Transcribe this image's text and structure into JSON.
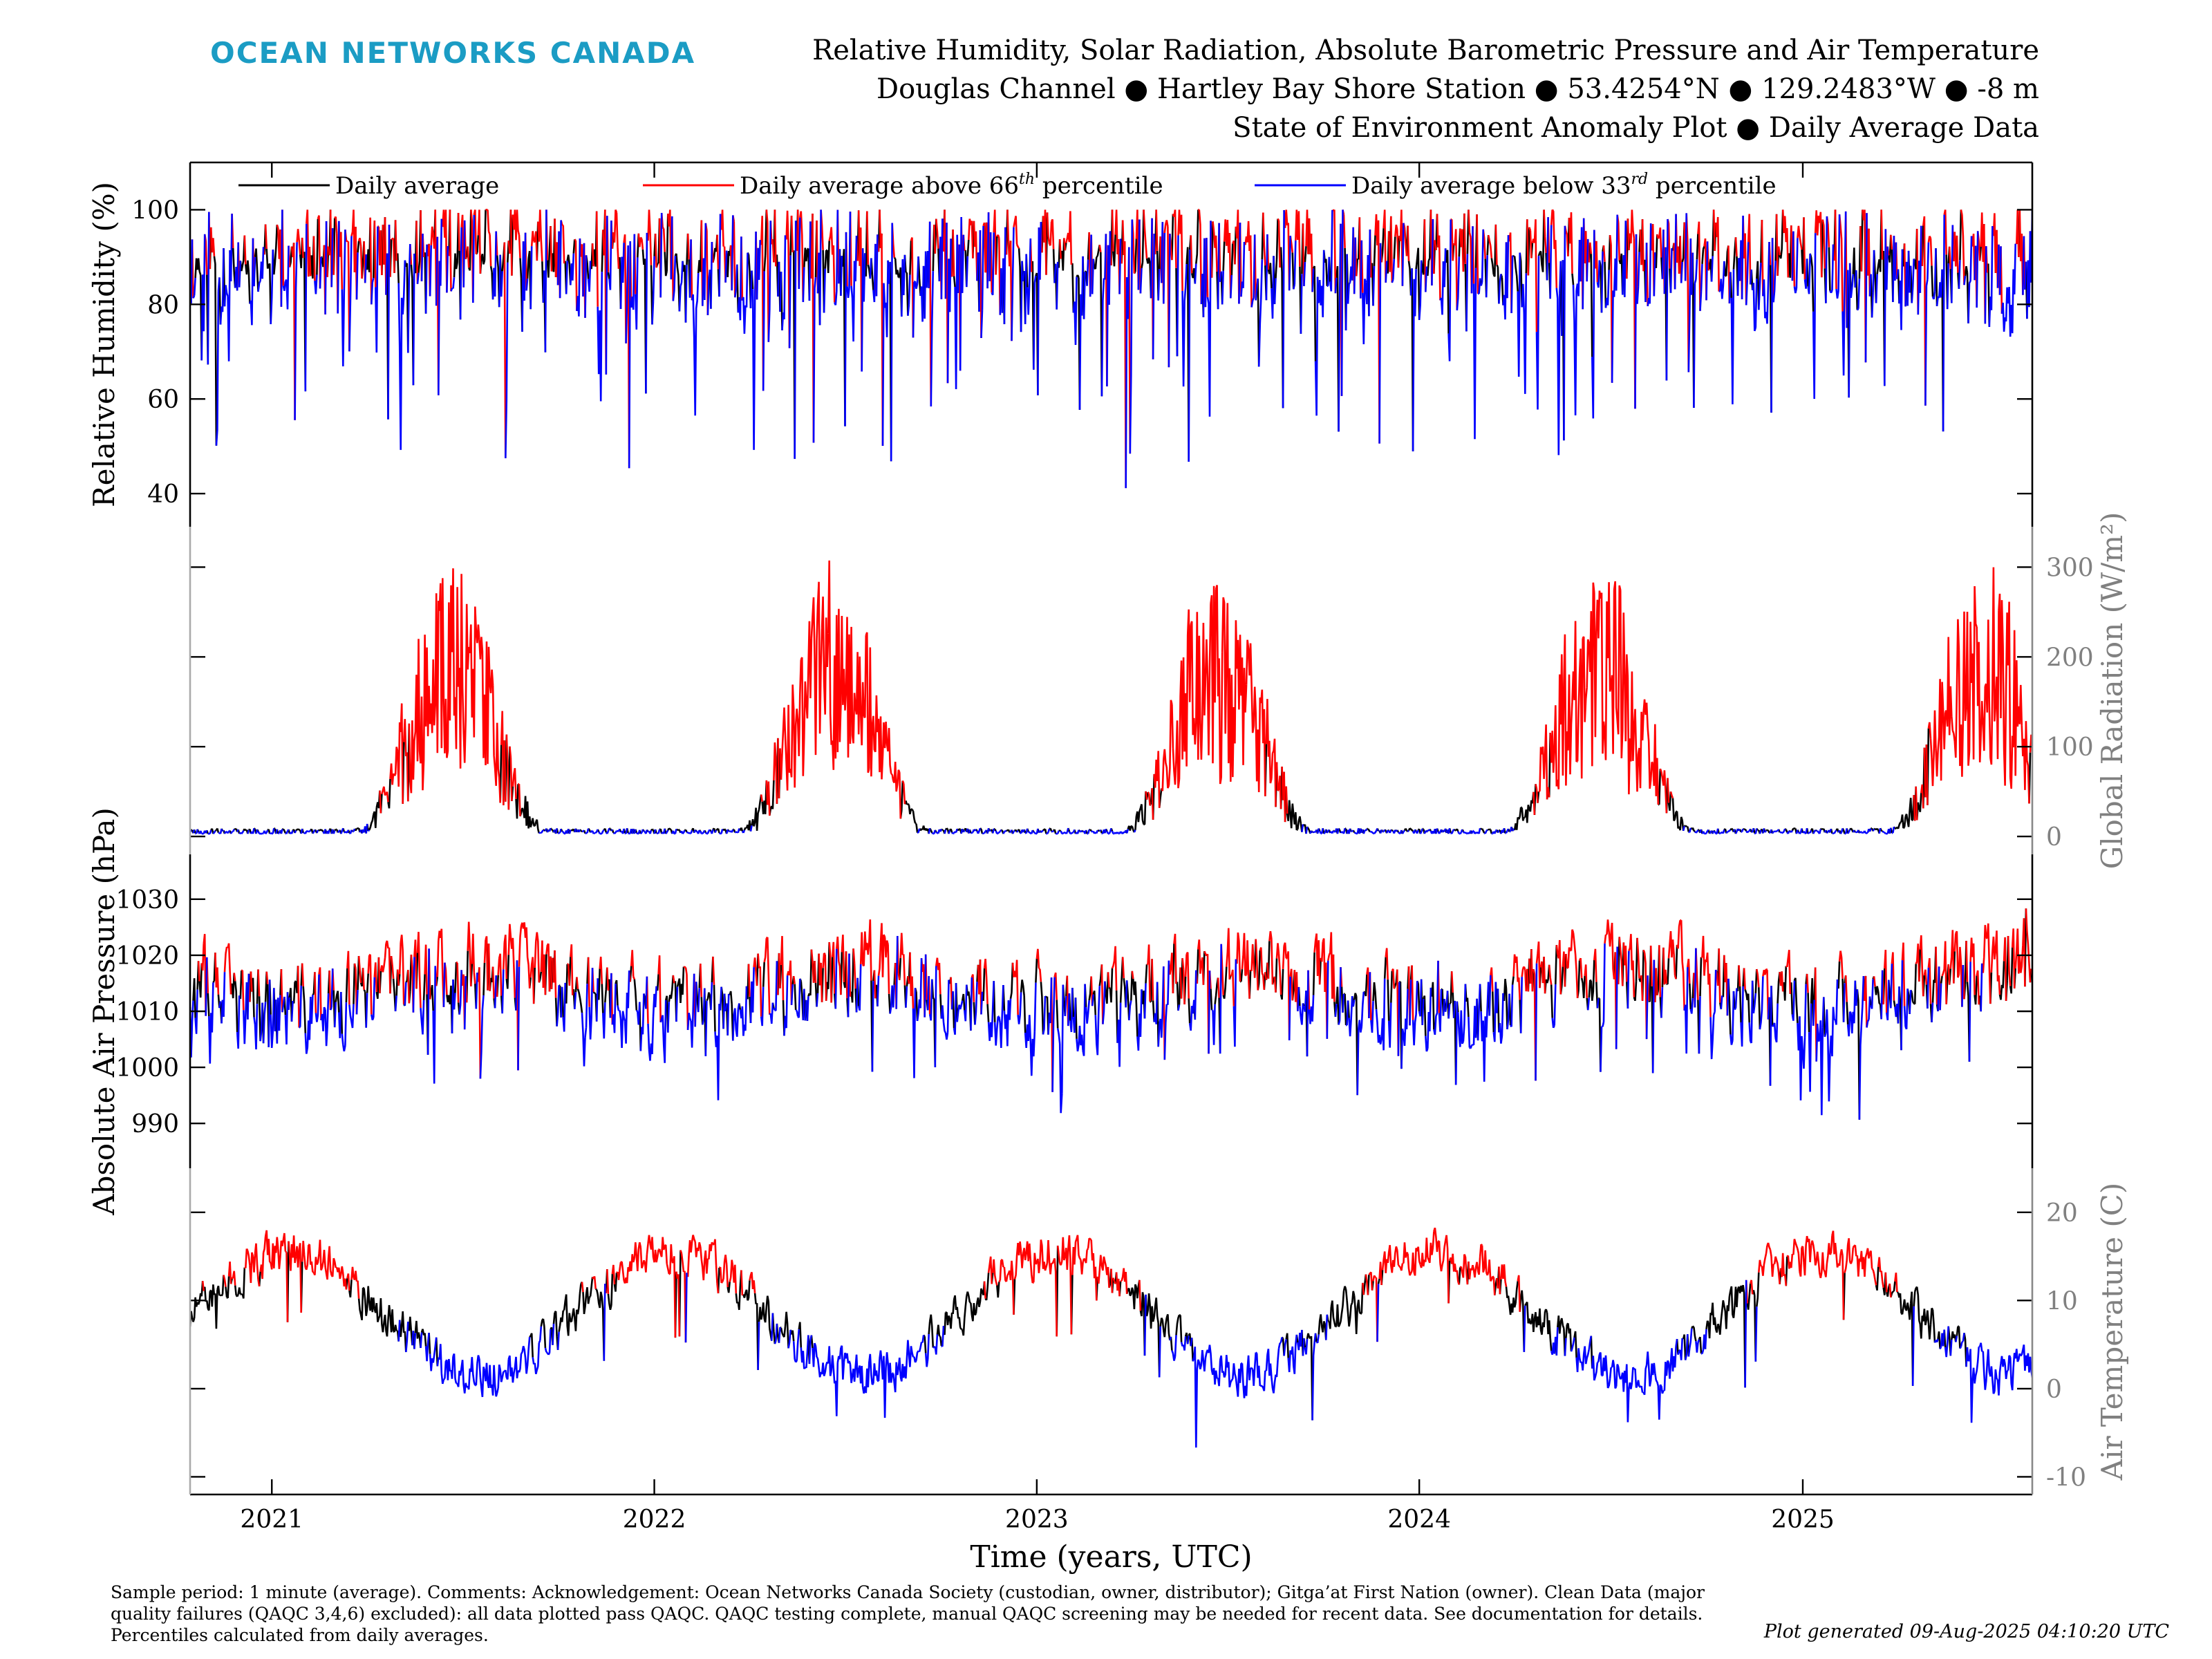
{
  "header": {
    "logo_text": "OCEAN NETWORKS CANADA",
    "title_line1": "Relative Humidity, Solar Radiation, Absolute Barometric Pressure and Air Temperature",
    "title_line2": "Douglas Channel ● Hartley Bay Shore Station ● 53.4254°N ● 129.2483°W ● -8 m",
    "title_line3": "State of Environment Anomaly Plot ● Daily Average Data"
  },
  "footer": {
    "note": "Sample period: 1 minute (average). Comments: Acknowledgement: Ocean Networks Canada Society (custodian, owner, distributor); Gitga’at First Nation (owner). Clean Data (major quality failures (QAQC 3,4,6) excluded): all data plotted pass QAQC. QAQC testing complete, manual QAQC screening may be needed for recent data. See documentation for details. Percentiles calculated from daily averages.",
    "generated": "Plot generated 09-Aug-2025 04:10:20 UTC"
  },
  "colors": {
    "logo": "#1b9cc4",
    "daily_average": "#000000",
    "above_66th": "#ff0000",
    "below_33rd": "#0000ff",
    "right_axis_text": "#808080"
  },
  "chart_data": {
    "type": "line",
    "xlabel": "Time (years, UTC)",
    "x_ticks": [
      "2021",
      "2022",
      "2023",
      "2024",
      "2025"
    ],
    "x_range": [
      "2020-10-15",
      "2025-08-08"
    ],
    "legend": {
      "placement": "top-left",
      "entries": [
        {
          "name": "Daily average",
          "color": "#000000",
          "label": "Daily average",
          "sup": "",
          "tail": ""
        },
        {
          "name": "Daily average above 66th percentile",
          "color": "#ff0000",
          "label": "Daily average above 66",
          "sup": "th",
          "tail": " percentile"
        },
        {
          "name": "Daily average below 33rd percentile",
          "color": "#0000ff",
          "label": "Daily average below 33",
          "sup": "rd",
          "tail": " percentile"
        }
      ]
    },
    "panels": [
      {
        "id": "humidity",
        "ylabel": "Relative Humidity (%)",
        "axis_side": "left",
        "ylim": [
          33,
          110
        ],
        "y_ticks": [
          40,
          60,
          80,
          100
        ],
        "base": [
          92,
          85,
          92,
          88
        ],
        "amp": [
          [
            0,
            0,
            0,
            0
          ],
          [
            0,
            0,
            0,
            0
          ]
        ],
        "noise": 9,
        "spike_prob": 0.06,
        "spike_dir": -1,
        "spike_size": 38,
        "clip": [
          35,
          100
        ],
        "phase": 0,
        "seed": 11
      },
      {
        "id": "radiation",
        "ylabel": "Global Radiation (W/m²)",
        "axis_side": "right",
        "ylim": [
          -20,
          345
        ],
        "y_ticks": [
          0,
          100,
          200,
          300
        ],
        "base": [
          120
        ],
        "amp": [
          [
            -130,
            0
          ]
        ],
        "noise": 70,
        "spike_prob": 0,
        "spike_dir": 1,
        "spike_size": 0,
        "clip": [
          3,
          335
        ],
        "phase": 172,
        "seed": 23
      },
      {
        "id": "pressure",
        "ylabel": "Absolute Air Pressure (hPa)",
        "axis_side": "left",
        "ylim": [
          982,
          1038
        ],
        "y_ticks": [
          990,
          1000,
          1010,
          1020,
          1030
        ],
        "base": [
          1014
        ],
        "amp": [
          [
            4,
            0
          ]
        ],
        "noise": 7,
        "spike_prob": 0.04,
        "spike_dir": -1,
        "spike_size": 14,
        "clip": [
          984,
          1037
        ],
        "phase": 200,
        "seed": 37
      },
      {
        "id": "temperature",
        "ylabel": "Air Temperature (C)",
        "axis_side": "right",
        "ylim": [
          -12,
          25
        ],
        "y_ticks": [
          -10,
          0,
          10,
          20
        ],
        "base": [
          8.5
        ],
        "amp": [
          [
            -7,
            0
          ]
        ],
        "noise": 2.2,
        "spike_prob": 0.015,
        "spike_dir": -1,
        "spike_size": 9,
        "clip": [
          -12,
          25
        ],
        "phase": 200,
        "seed": 51
      }
    ]
  }
}
